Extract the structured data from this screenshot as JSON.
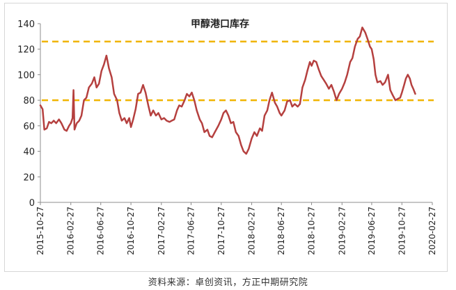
{
  "chart_data": {
    "type": "line",
    "title": "甲醇港口库存",
    "xlabel": "",
    "ylabel": "",
    "ylim": [
      0,
      140
    ],
    "yticks": [
      0,
      20,
      40,
      60,
      80,
      100,
      120,
      140
    ],
    "grid": false,
    "legend": "none",
    "x_tick_labels": [
      "2015-10-27",
      "2016-02-27",
      "2016-06-27",
      "2016-10-27",
      "2017-02-27",
      "2017-06-27",
      "2017-10-27",
      "2018-02-27",
      "2018-06-27",
      "2018-10-27",
      "2019-02-27",
      "2019-06-27",
      "2019-10-27",
      "2020-02-27"
    ],
    "x_start": "2015-10-27",
    "x_end": "2020-02-27",
    "series": [
      {
        "color": "#b5403f",
        "points": [
          [
            "2015-10-27",
            76
          ],
          [
            "2015-11-05",
            73
          ],
          [
            "2015-11-12",
            57
          ],
          [
            "2015-11-22",
            58
          ],
          [
            "2015-12-01",
            63
          ],
          [
            "2015-12-10",
            62
          ],
          [
            "2015-12-20",
            64
          ],
          [
            "2015-12-30",
            62
          ],
          [
            "2016-01-10",
            65
          ],
          [
            "2016-01-20",
            62
          ],
          [
            "2016-02-01",
            57
          ],
          [
            "2016-02-10",
            56
          ],
          [
            "2016-02-20",
            60
          ],
          [
            "2016-02-27",
            62
          ],
          [
            "2016-03-05",
            66
          ],
          [
            "2016-03-09",
            88
          ],
          [
            "2016-03-13",
            57
          ],
          [
            "2016-03-22",
            62
          ],
          [
            "2016-04-01",
            64
          ],
          [
            "2016-04-10",
            68
          ],
          [
            "2016-04-20",
            80
          ],
          [
            "2016-04-30",
            82
          ],
          [
            "2016-05-10",
            90
          ],
          [
            "2016-05-22",
            93
          ],
          [
            "2016-06-01",
            98
          ],
          [
            "2016-06-10",
            90
          ],
          [
            "2016-06-20",
            93
          ],
          [
            "2016-06-30",
            103
          ],
          [
            "2016-07-10",
            108
          ],
          [
            "2016-07-20",
            115
          ],
          [
            "2016-07-30",
            105
          ],
          [
            "2016-08-10",
            98
          ],
          [
            "2016-08-20",
            85
          ],
          [
            "2016-09-01",
            80
          ],
          [
            "2016-09-10",
            70
          ],
          [
            "2016-09-20",
            64
          ],
          [
            "2016-10-01",
            66
          ],
          [
            "2016-10-10",
            62
          ],
          [
            "2016-10-20",
            66
          ],
          [
            "2016-10-27",
            59
          ],
          [
            "2016-11-05",
            65
          ],
          [
            "2016-11-15",
            73
          ],
          [
            "2016-11-25",
            85
          ],
          [
            "2016-12-05",
            86
          ],
          [
            "2016-12-15",
            92
          ],
          [
            "2016-12-25",
            86
          ],
          [
            "2017-01-05",
            76
          ],
          [
            "2017-01-15",
            68
          ],
          [
            "2017-01-25",
            72
          ],
          [
            "2017-02-05",
            68
          ],
          [
            "2017-02-15",
            70
          ],
          [
            "2017-02-27",
            65
          ],
          [
            "2017-03-10",
            66
          ],
          [
            "2017-03-20",
            64
          ],
          [
            "2017-04-01",
            63
          ],
          [
            "2017-04-10",
            64
          ],
          [
            "2017-04-20",
            65
          ],
          [
            "2017-05-01",
            72
          ],
          [
            "2017-05-10",
            76
          ],
          [
            "2017-05-20",
            75
          ],
          [
            "2017-06-01",
            80
          ],
          [
            "2017-06-10",
            85
          ],
          [
            "2017-06-20",
            83
          ],
          [
            "2017-06-30",
            86
          ],
          [
            "2017-07-10",
            80
          ],
          [
            "2017-07-20",
            72
          ],
          [
            "2017-08-01",
            65
          ],
          [
            "2017-08-10",
            62
          ],
          [
            "2017-08-20",
            55
          ],
          [
            "2017-09-01",
            57
          ],
          [
            "2017-09-10",
            52
          ],
          [
            "2017-09-20",
            51
          ],
          [
            "2017-10-01",
            55
          ],
          [
            "2017-10-15",
            60
          ],
          [
            "2017-10-27",
            65
          ],
          [
            "2017-11-05",
            70
          ],
          [
            "2017-11-15",
            72
          ],
          [
            "2017-11-25",
            68
          ],
          [
            "2017-12-05",
            62
          ],
          [
            "2017-12-15",
            63
          ],
          [
            "2017-12-25",
            55
          ],
          [
            "2018-01-05",
            52
          ],
          [
            "2018-01-15",
            45
          ],
          [
            "2018-01-25",
            40
          ],
          [
            "2018-02-05",
            38
          ],
          [
            "2018-02-15",
            42
          ],
          [
            "2018-02-27",
            50
          ],
          [
            "2018-03-10",
            55
          ],
          [
            "2018-03-20",
            52
          ],
          [
            "2018-04-01",
            58
          ],
          [
            "2018-04-10",
            56
          ],
          [
            "2018-04-20",
            68
          ],
          [
            "2018-05-01",
            72
          ],
          [
            "2018-05-10",
            80
          ],
          [
            "2018-05-20",
            86
          ],
          [
            "2018-06-01",
            78
          ],
          [
            "2018-06-10",
            75
          ],
          [
            "2018-06-20",
            70
          ],
          [
            "2018-06-27",
            68
          ],
          [
            "2018-07-10",
            72
          ],
          [
            "2018-07-20",
            79
          ],
          [
            "2018-08-01",
            80
          ],
          [
            "2018-08-10",
            75
          ],
          [
            "2018-08-20",
            77
          ],
          [
            "2018-09-01",
            75
          ],
          [
            "2018-09-10",
            77
          ],
          [
            "2018-09-20",
            90
          ],
          [
            "2018-10-01",
            96
          ],
          [
            "2018-10-10",
            103
          ],
          [
            "2018-10-20",
            110
          ],
          [
            "2018-10-27",
            107
          ],
          [
            "2018-11-05",
            111
          ],
          [
            "2018-11-15",
            110
          ],
          [
            "2018-11-25",
            104
          ],
          [
            "2018-12-05",
            99
          ],
          [
            "2018-12-15",
            96
          ],
          [
            "2018-12-25",
            93
          ],
          [
            "2019-01-05",
            89
          ],
          [
            "2019-01-15",
            92
          ],
          [
            "2019-01-25",
            87
          ],
          [
            "2019-02-05",
            80
          ],
          [
            "2019-02-15",
            85
          ],
          [
            "2019-02-27",
            89
          ],
          [
            "2019-03-10",
            94
          ],
          [
            "2019-03-20",
            100
          ],
          [
            "2019-04-01",
            110
          ],
          [
            "2019-04-10",
            113
          ],
          [
            "2019-04-20",
            122
          ],
          [
            "2019-05-01",
            128
          ],
          [
            "2019-05-10",
            130
          ],
          [
            "2019-05-20",
            137
          ],
          [
            "2019-06-01",
            133
          ],
          [
            "2019-06-10",
            128
          ],
          [
            "2019-06-20",
            122
          ],
          [
            "2019-06-27",
            120
          ],
          [
            "2019-07-05",
            112
          ],
          [
            "2019-07-12",
            100
          ],
          [
            "2019-07-20",
            94
          ],
          [
            "2019-08-01",
            95
          ],
          [
            "2019-08-10",
            92
          ],
          [
            "2019-08-20",
            94
          ],
          [
            "2019-09-01",
            100
          ],
          [
            "2019-09-10",
            88
          ],
          [
            "2019-09-20",
            84
          ],
          [
            "2019-10-01",
            80
          ],
          [
            "2019-10-10",
            81
          ],
          [
            "2019-10-20",
            82
          ],
          [
            "2019-10-27",
            86
          ],
          [
            "2019-11-05",
            92
          ],
          [
            "2019-11-12",
            97
          ],
          [
            "2019-11-20",
            100
          ],
          [
            "2019-11-28",
            97
          ],
          [
            "2019-12-05",
            92
          ],
          [
            "2019-12-12",
            89
          ],
          [
            "2019-12-20",
            85
          ]
        ]
      }
    ],
    "reference_lines": [
      {
        "y": 126,
        "color": "#f0b400",
        "style": "dashed"
      },
      {
        "y": 80,
        "color": "#f0b400",
        "style": "dashed"
      }
    ],
    "source": "资料来源：卓创资讯，方正中期研究院"
  }
}
